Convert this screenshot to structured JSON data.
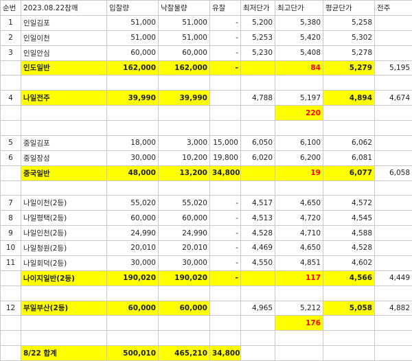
{
  "table": {
    "header": [
      "순번",
      "2023.08.22참깨",
      "입찰량",
      "낙찰물량",
      "유찰",
      "최저단가",
      "최고단가",
      "평균단가",
      "전주"
    ],
    "rows": [
      [
        "1",
        "인일김포",
        "51,000",
        "51,000",
        "-",
        "5,200",
        "5,380",
        "5,258",
        null
      ],
      [
        "2",
        "인일이천",
        "51,000",
        "51,000",
        "-",
        "5,253",
        "5,420",
        "5,302",
        null
      ],
      [
        "3",
        "인일안심",
        "60,000",
        "60,000",
        "-",
        "5,230",
        "5,408",
        "5,278",
        null
      ],
      [
        null,
        "인도일반",
        "162,000",
        "162,000",
        "-",
        null,
        "84",
        "5,279",
        "5,195"
      ],
      [
        null,
        null,
        null,
        null,
        null,
        null,
        null,
        null,
        null
      ],
      [
        "4",
        "나일전주",
        "39,990",
        "39,990",
        null,
        "4,788",
        "5,197",
        "4,894",
        "4,674"
      ],
      [
        null,
        null,
        null,
        null,
        null,
        null,
        "220",
        null,
        null
      ],
      [
        null,
        null,
        null,
        null,
        null,
        null,
        null,
        null,
        null
      ],
      [
        "5",
        "중일김포",
        "18,000",
        "3,000",
        "15,000",
        "6,050",
        "6,100",
        "6,062",
        null
      ],
      [
        "6",
        "중일장성",
        "30,000",
        "10,200",
        "19,800",
        "6,020",
        "6,200",
        "6,081",
        null
      ],
      [
        null,
        "중국일반",
        "48,000",
        "13,200",
        "34,800",
        null,
        "19",
        "6,077",
        "6,058"
      ],
      [
        null,
        null,
        null,
        null,
        null,
        null,
        null,
        null,
        null
      ],
      [
        "7",
        "나일이천(2등)",
        "55,020",
        "55,020",
        "-",
        "4,517",
        "4,650",
        "4,572",
        null
      ],
      [
        "8",
        "나일평택(2등)",
        "60,000",
        "60,000",
        "-",
        "4,513",
        "4,720",
        "4,545",
        null
      ],
      [
        "9",
        "나일인천(2등)",
        "24,990",
        "24,990",
        "-",
        "4,528",
        "4,710",
        "4,588",
        null
      ],
      [
        "10",
        "나일청원(2등)",
        "20,010",
        "20,010",
        "-",
        "4,469",
        "4,650",
        "4,528",
        null
      ],
      [
        "11",
        "나일회덕(2등)",
        "30,000",
        "30,000",
        "-",
        "4,550",
        "4,851",
        "4,602",
        null
      ],
      [
        null,
        "나이지일반(2등)",
        "190,020",
        "190,020",
        "-",
        null,
        "117",
        "4,566",
        "4,449"
      ],
      [
        null,
        null,
        null,
        null,
        null,
        null,
        null,
        null,
        null
      ],
      [
        "12",
        "부일부산(2등)",
        "60,000",
        "60,000",
        null,
        "4,965",
        "5,212",
        "5,058",
        "4,882"
      ],
      [
        null,
        null,
        null,
        null,
        null,
        null,
        "176",
        null,
        null
      ],
      [
        null,
        null,
        null,
        null,
        null,
        null,
        null,
        null,
        null
      ],
      [
        null,
        "8/22 합계",
        "500,010",
        "465,210",
        "34,800",
        null,
        null,
        null,
        null
      ]
    ]
  }
}
